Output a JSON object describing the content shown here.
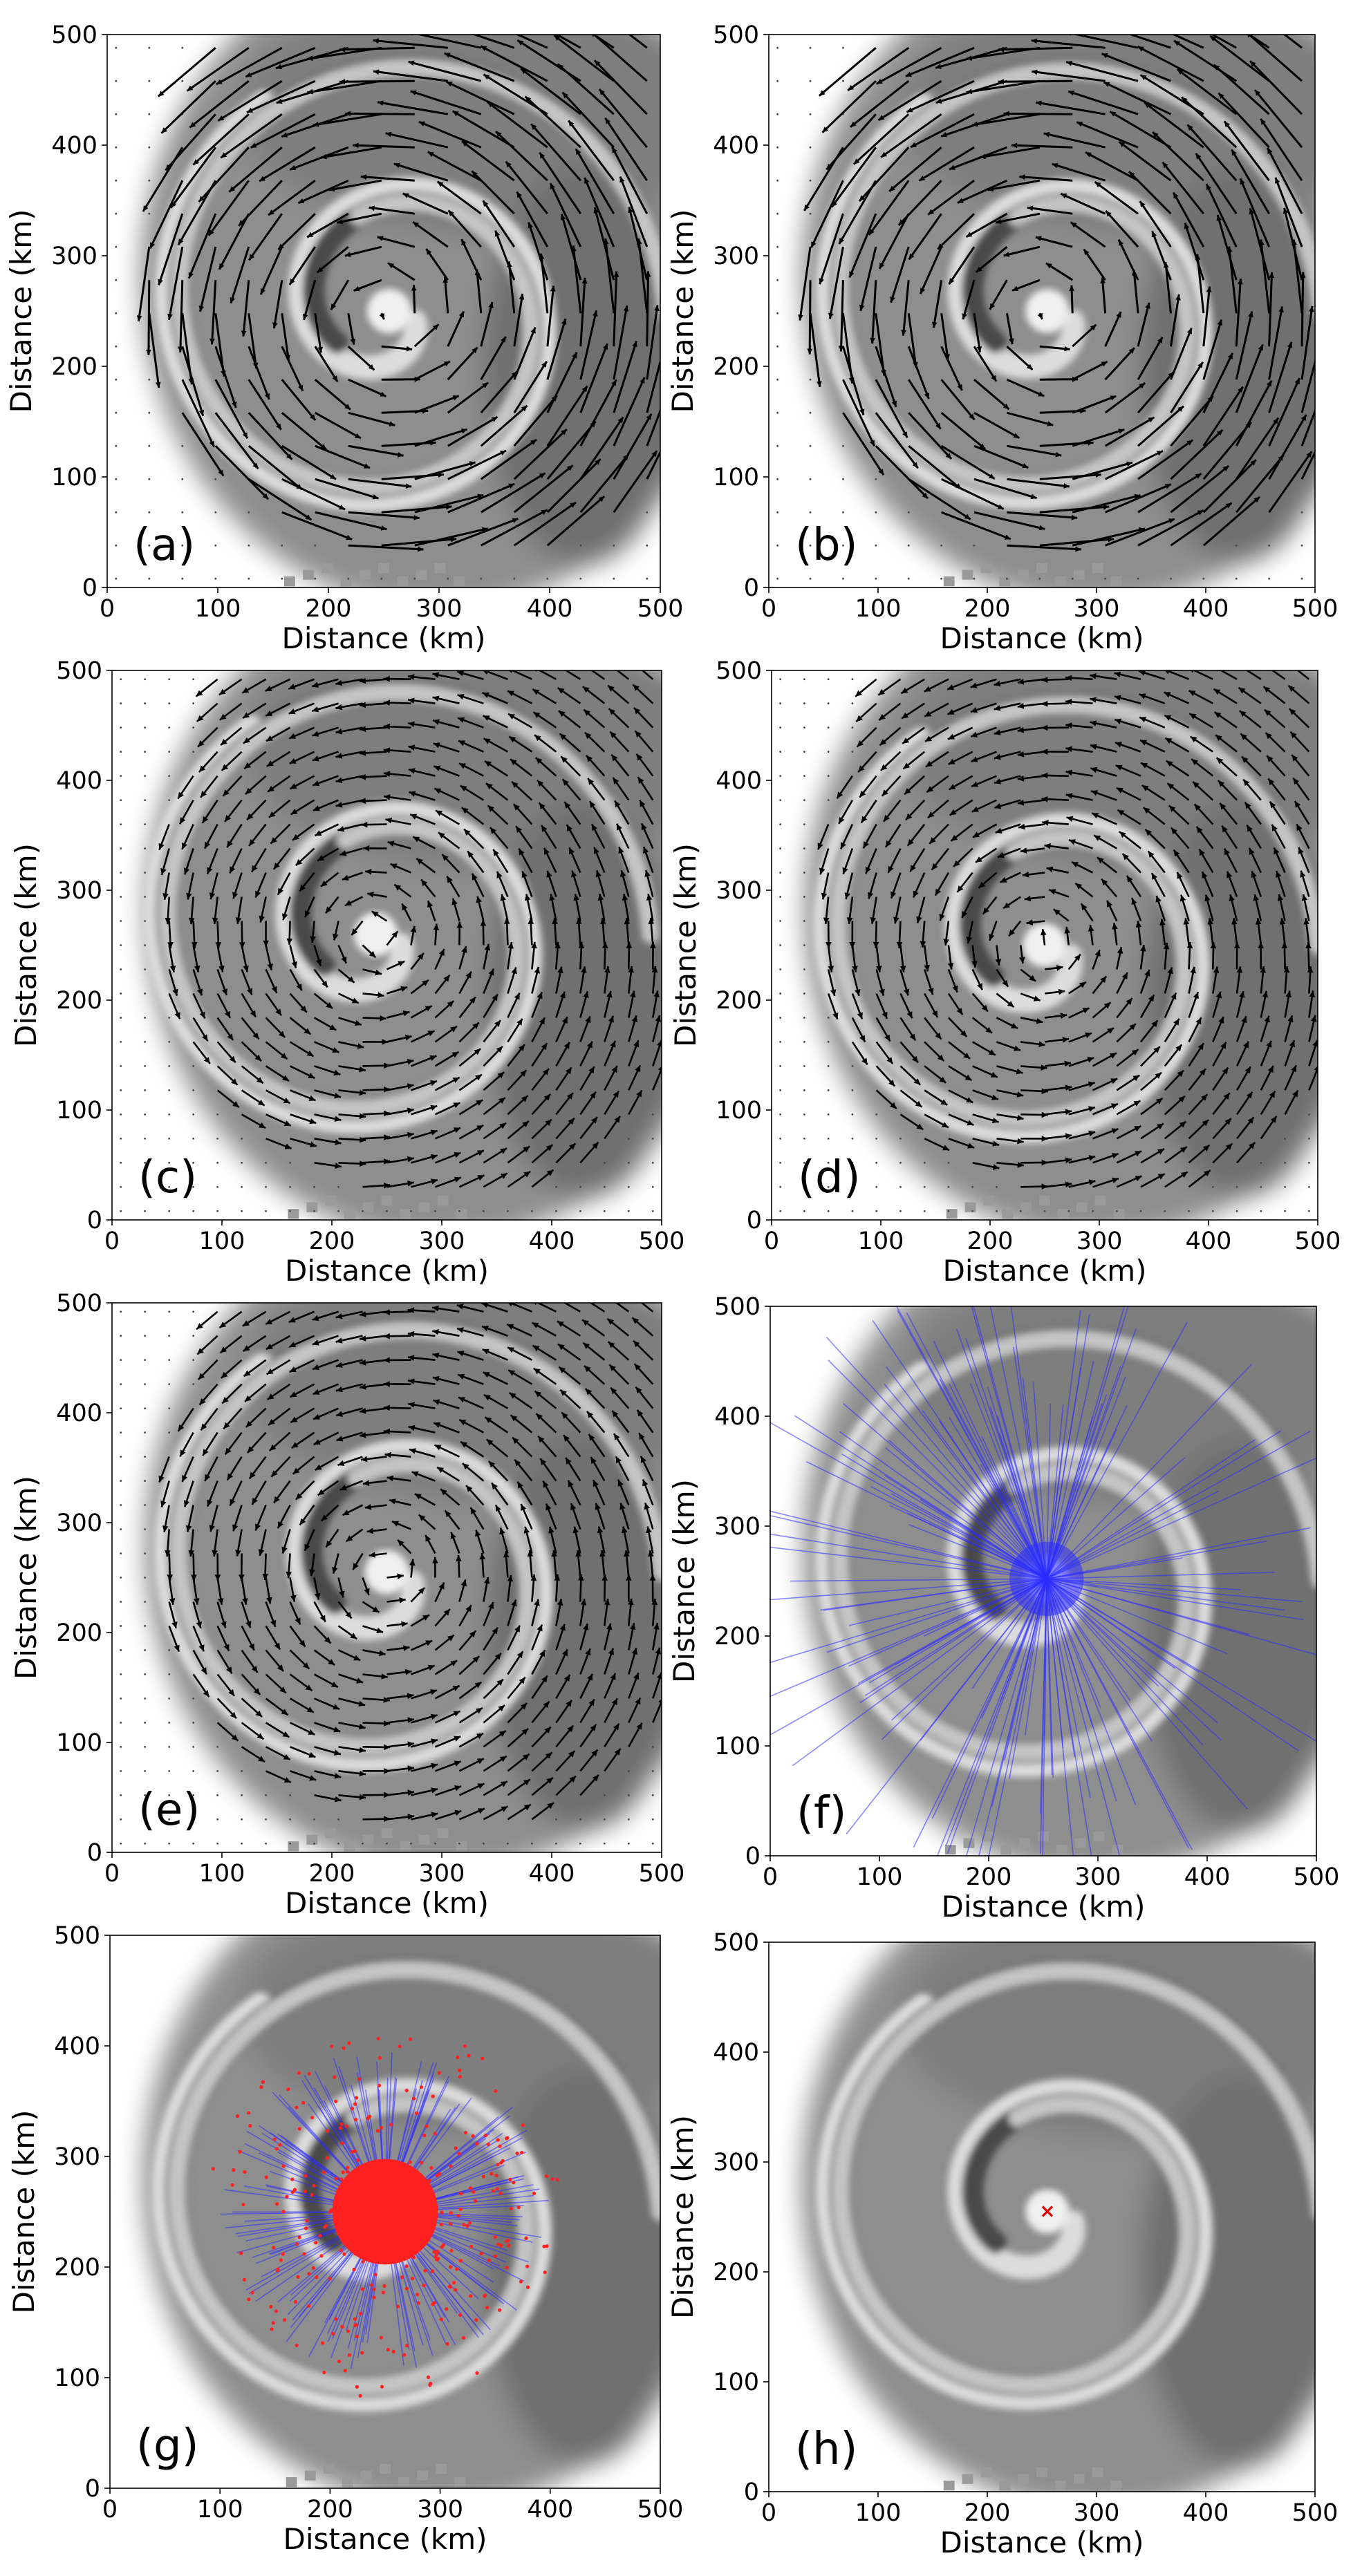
{
  "figure": {
    "axis_label": "Distance (km)",
    "colors": {
      "vector": "#000000",
      "ray": "#2b2bff",
      "point": "#ff2020",
      "center_marker": "#e00000"
    }
  },
  "chart_data": [
    {
      "panel_label": "(a)",
      "type": "quiver",
      "overlay": "cloud-top imagery (grayscale)",
      "density": "sparse",
      "style": "long arrows",
      "xlabel": "Distance (km)",
      "ylabel": "Distance (km)",
      "xlim": [
        0,
        500
      ],
      "ylim": [
        0,
        500
      ],
      "xticks": [
        0,
        100,
        200,
        300,
        400,
        500
      ],
      "yticks": [
        0,
        100,
        200,
        300,
        400,
        500
      ],
      "center_km": [
        255,
        250
      ]
    },
    {
      "panel_label": "(b)",
      "type": "quiver",
      "overlay": "cloud-top imagery (grayscale)",
      "density": "sparse",
      "style": "long arrows",
      "xlabel": "Distance (km)",
      "ylabel": "Distance (km)",
      "xlim": [
        0,
        500
      ],
      "ylim": [
        0,
        500
      ],
      "xticks": [
        0,
        100,
        200,
        300,
        400,
        500
      ],
      "yticks": [
        0,
        100,
        200,
        300,
        400,
        500
      ],
      "center_km": [
        255,
        250
      ]
    },
    {
      "panel_label": "(c)",
      "type": "quiver",
      "overlay": "cloud-top imagery (grayscale)",
      "density": "dense",
      "style": "short arrows",
      "xlabel": "Distance (km)",
      "ylabel": "Distance (km)",
      "xlim": [
        0,
        500
      ],
      "ylim": [
        0,
        500
      ],
      "xticks": [
        0,
        100,
        200,
        300,
        400,
        500
      ],
      "yticks": [
        0,
        100,
        200,
        300,
        400,
        500
      ],
      "center_km": [
        240,
        260
      ]
    },
    {
      "panel_label": "(d)",
      "type": "quiver",
      "overlay": "cloud-top imagery (grayscale)",
      "density": "dense",
      "style": "short arrows",
      "xlabel": "Distance (km)",
      "ylabel": "Distance (km)",
      "xlim": [
        0,
        500
      ],
      "ylim": [
        0,
        500
      ],
      "xticks": [
        0,
        100,
        200,
        300,
        400,
        500
      ],
      "yticks": [
        0,
        100,
        200,
        300,
        400,
        500
      ],
      "center_km": [
        250,
        250
      ]
    },
    {
      "panel_label": "(e)",
      "type": "quiver",
      "overlay": "cloud-top imagery (grayscale)",
      "density": "dense",
      "style": "short arrows",
      "xlabel": "Distance (km)",
      "ylabel": "Distance (km)",
      "xlim": [
        0,
        500
      ],
      "ylim": [
        0,
        500
      ],
      "xticks": [
        0,
        100,
        200,
        300,
        400,
        500
      ],
      "yticks": [
        0,
        100,
        200,
        300,
        400,
        500
      ],
      "center_km": [
        250,
        255
      ]
    },
    {
      "panel_label": "(f)",
      "type": "rays",
      "overlay": "cloud-top imagery (grayscale)",
      "ray_color": "#2b2bff",
      "xlabel": "Distance (km)",
      "ylabel": "Distance (km)",
      "xlim": [
        0,
        500
      ],
      "ylim": [
        0,
        500
      ],
      "xticks": [
        0,
        100,
        200,
        300,
        400,
        500
      ],
      "yticks": [
        0,
        100,
        200,
        300,
        400,
        500
      ],
      "center_km": [
        253,
        252
      ]
    },
    {
      "panel_label": "(g)",
      "type": "rays+scatter",
      "overlay": "cloud-top imagery (grayscale)",
      "ray_color": "#2b2bff",
      "point_color": "#ff2020",
      "xlabel": "Distance (km)",
      "ylabel": "Distance (km)",
      "xlim": [
        0,
        500
      ],
      "ylim": [
        0,
        500
      ],
      "xticks": [
        0,
        100,
        200,
        300,
        400,
        500
      ],
      "yticks": [
        0,
        100,
        200,
        300,
        400,
        500
      ],
      "center_km": [
        250,
        250
      ]
    },
    {
      "panel_label": "(h)",
      "type": "marker",
      "overlay": "cloud-top imagery (grayscale)",
      "marker": "x",
      "marker_color": "#e00000",
      "xlabel": "Distance (km)",
      "ylabel": "Distance (km)",
      "xlim": [
        0,
        500
      ],
      "ylim": [
        0,
        500
      ],
      "xticks": [
        0,
        100,
        200,
        300,
        400,
        500
      ],
      "yticks": [
        0,
        100,
        200,
        300,
        400,
        500
      ],
      "center_km": [
        255,
        255
      ]
    }
  ]
}
